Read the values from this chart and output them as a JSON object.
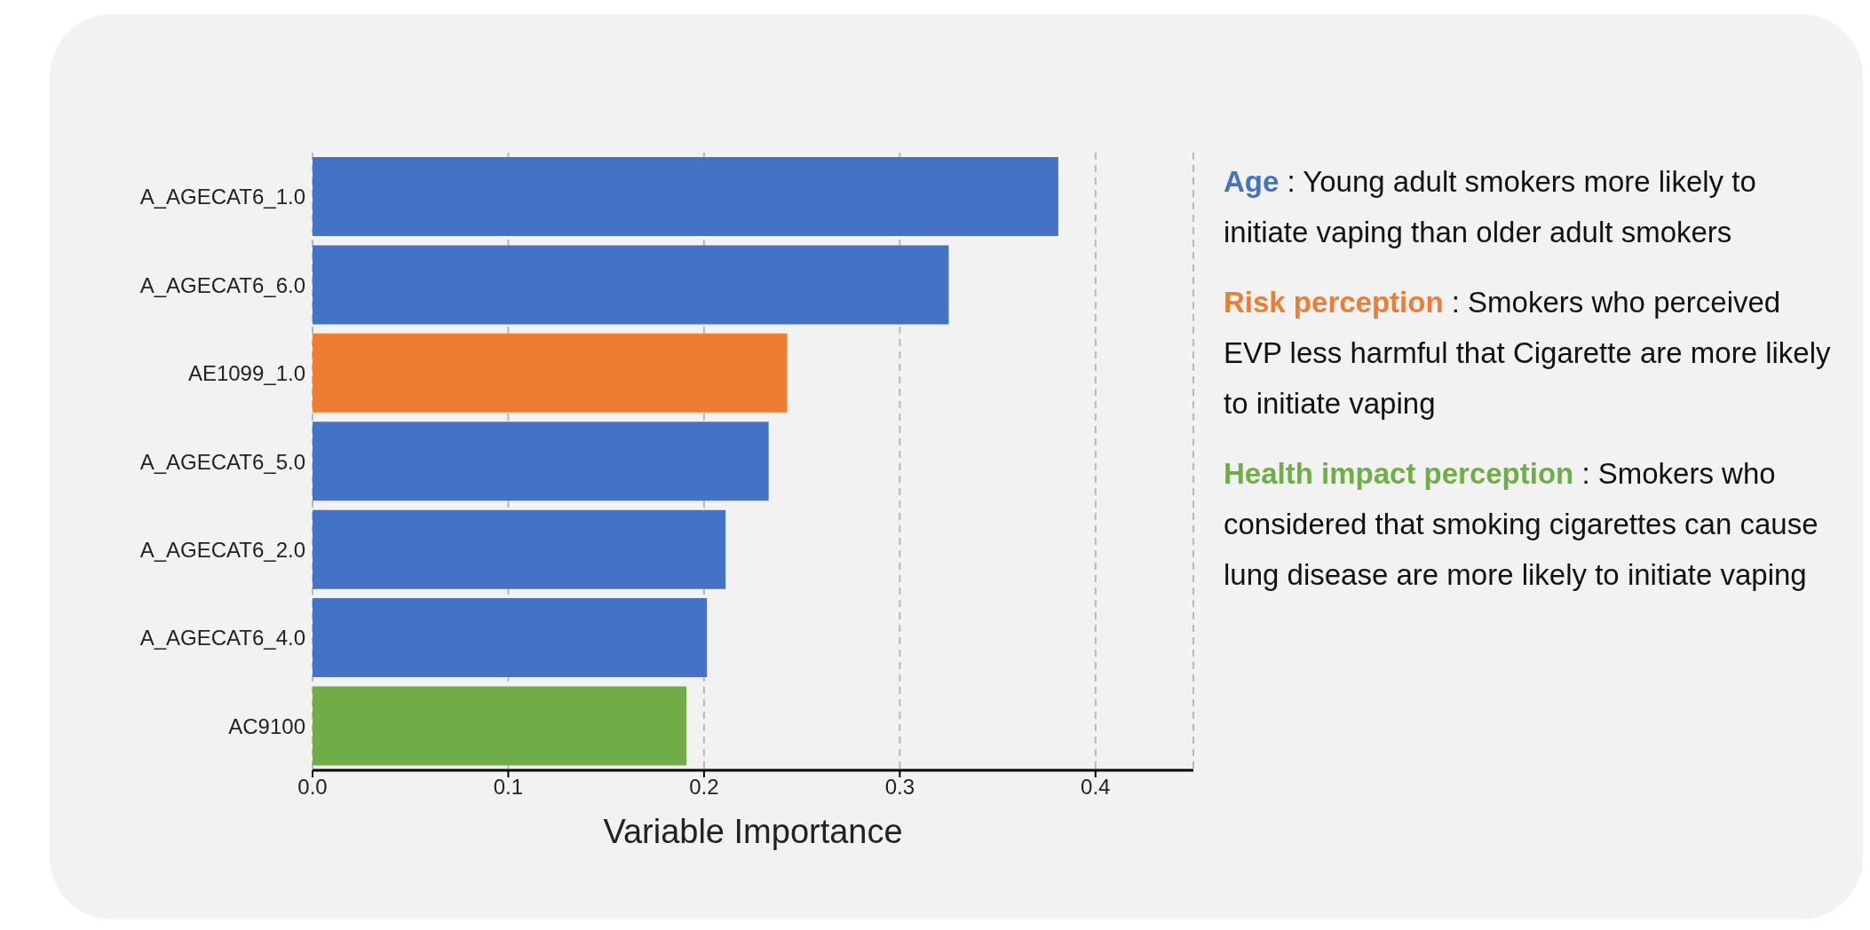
{
  "chart_data": {
    "type": "bar",
    "orientation": "horizontal",
    "xlabel": "Variable Importance",
    "categories": [
      "A_AGECAT6_1.0",
      "A_AGECAT6_6.0",
      "AE1099_1.0",
      "A_AGECAT6_5.0",
      "A_AGECAT6_2.0",
      "A_AGECAT6_4.0",
      "AC9100"
    ],
    "values": [
      0.381,
      0.325,
      0.2425,
      0.233,
      0.211,
      0.2015,
      0.191
    ],
    "colors": [
      "#4472c4",
      "#4472c4",
      "#ed7d31",
      "#4472c4",
      "#4472c4",
      "#4472c4",
      "#70ad47"
    ],
    "xlim": [
      0,
      0.45
    ],
    "xticks": [
      {
        "value": 0,
        "label": "0.0"
      },
      {
        "value": 0.1,
        "label": "0.1"
      },
      {
        "value": 0.2,
        "label": "0.2"
      },
      {
        "value": 0.3,
        "label": "0.3"
      },
      {
        "value": 0.4,
        "label": "0.4"
      }
    ],
    "grid": "x",
    "annotations": [
      "Age : Young adult smokers more likely to initiate vaping than older adult smokers",
      "Risk perception : Smokers who perceived EVP less harmful that Cigarette are more likely to initiate vaping",
      "Health impact perception :  Smokers who considered that smoking cigarettes can cause lung disease are more likely to initiate vaping"
    ]
  }
}
